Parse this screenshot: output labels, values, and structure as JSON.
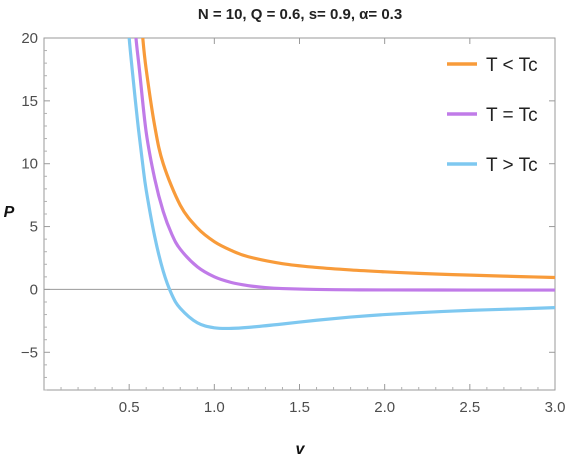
{
  "chart_data": {
    "type": "line",
    "title": "N = 10, Q = 0.6, s= 0.9, α= 0.3",
    "xlabel": "v",
    "ylabel": "P",
    "xlim": [
      0,
      3.0
    ],
    "ylim": [
      -8,
      20
    ],
    "x_ticks": [
      0.5,
      1.0,
      1.5,
      2.0,
      2.5,
      3.0
    ],
    "x_tick_labels": [
      "0.5",
      "1.0",
      "1.5",
      "2.0",
      "2.5",
      "3.0"
    ],
    "y_ticks": [
      -5,
      0,
      5,
      10,
      15,
      20
    ],
    "y_tick_labels": [
      "−5",
      "0",
      "5",
      "10",
      "15",
      "20"
    ],
    "grid": false,
    "legend_position": "top-right",
    "series": [
      {
        "name": "T < Tc",
        "color": "#f89b3a",
        "x": [
          0.58,
          0.6,
          0.65,
          0.7,
          0.8,
          0.9,
          1.0,
          1.1,
          1.2,
          1.4,
          1.6,
          1.8,
          2.0,
          2.2,
          2.4,
          2.6,
          2.8,
          3.0
        ],
        "y": [
          20.0,
          17.5,
          13.0,
          10.0,
          6.7,
          4.9,
          3.8,
          3.1,
          2.6,
          2.05,
          1.75,
          1.55,
          1.4,
          1.28,
          1.18,
          1.1,
          1.02,
          0.95
        ]
      },
      {
        "name": "T = Tc",
        "color": "#c07be8",
        "x": [
          0.54,
          0.56,
          0.6,
          0.65,
          0.7,
          0.75,
          0.8,
          0.9,
          1.0,
          1.1,
          1.2,
          1.3,
          1.4,
          1.6,
          1.8,
          2.0,
          2.5,
          3.0
        ],
        "y": [
          20.0,
          17.5,
          12.5,
          8.8,
          6.2,
          4.4,
          3.2,
          1.8,
          1.0,
          0.55,
          0.3,
          0.15,
          0.07,
          0.0,
          -0.03,
          -0.04,
          -0.05,
          -0.05
        ]
      },
      {
        "name": "T > Tc",
        "color": "#7ec8f0",
        "x": [
          0.5,
          0.52,
          0.55,
          0.58,
          0.6,
          0.65,
          0.7,
          0.75,
          0.8,
          0.9,
          1.0,
          1.1,
          1.2,
          1.4,
          1.6,
          1.8,
          2.0,
          2.2,
          2.4,
          2.6,
          2.8,
          3.0
        ],
        "y": [
          20.0,
          17.2,
          13.3,
          9.9,
          7.9,
          4.2,
          1.45,
          -0.4,
          -1.5,
          -2.65,
          -3.05,
          -3.1,
          -3.02,
          -2.75,
          -2.45,
          -2.2,
          -2.0,
          -1.85,
          -1.72,
          -1.62,
          -1.54,
          -1.45
        ]
      }
    ]
  }
}
